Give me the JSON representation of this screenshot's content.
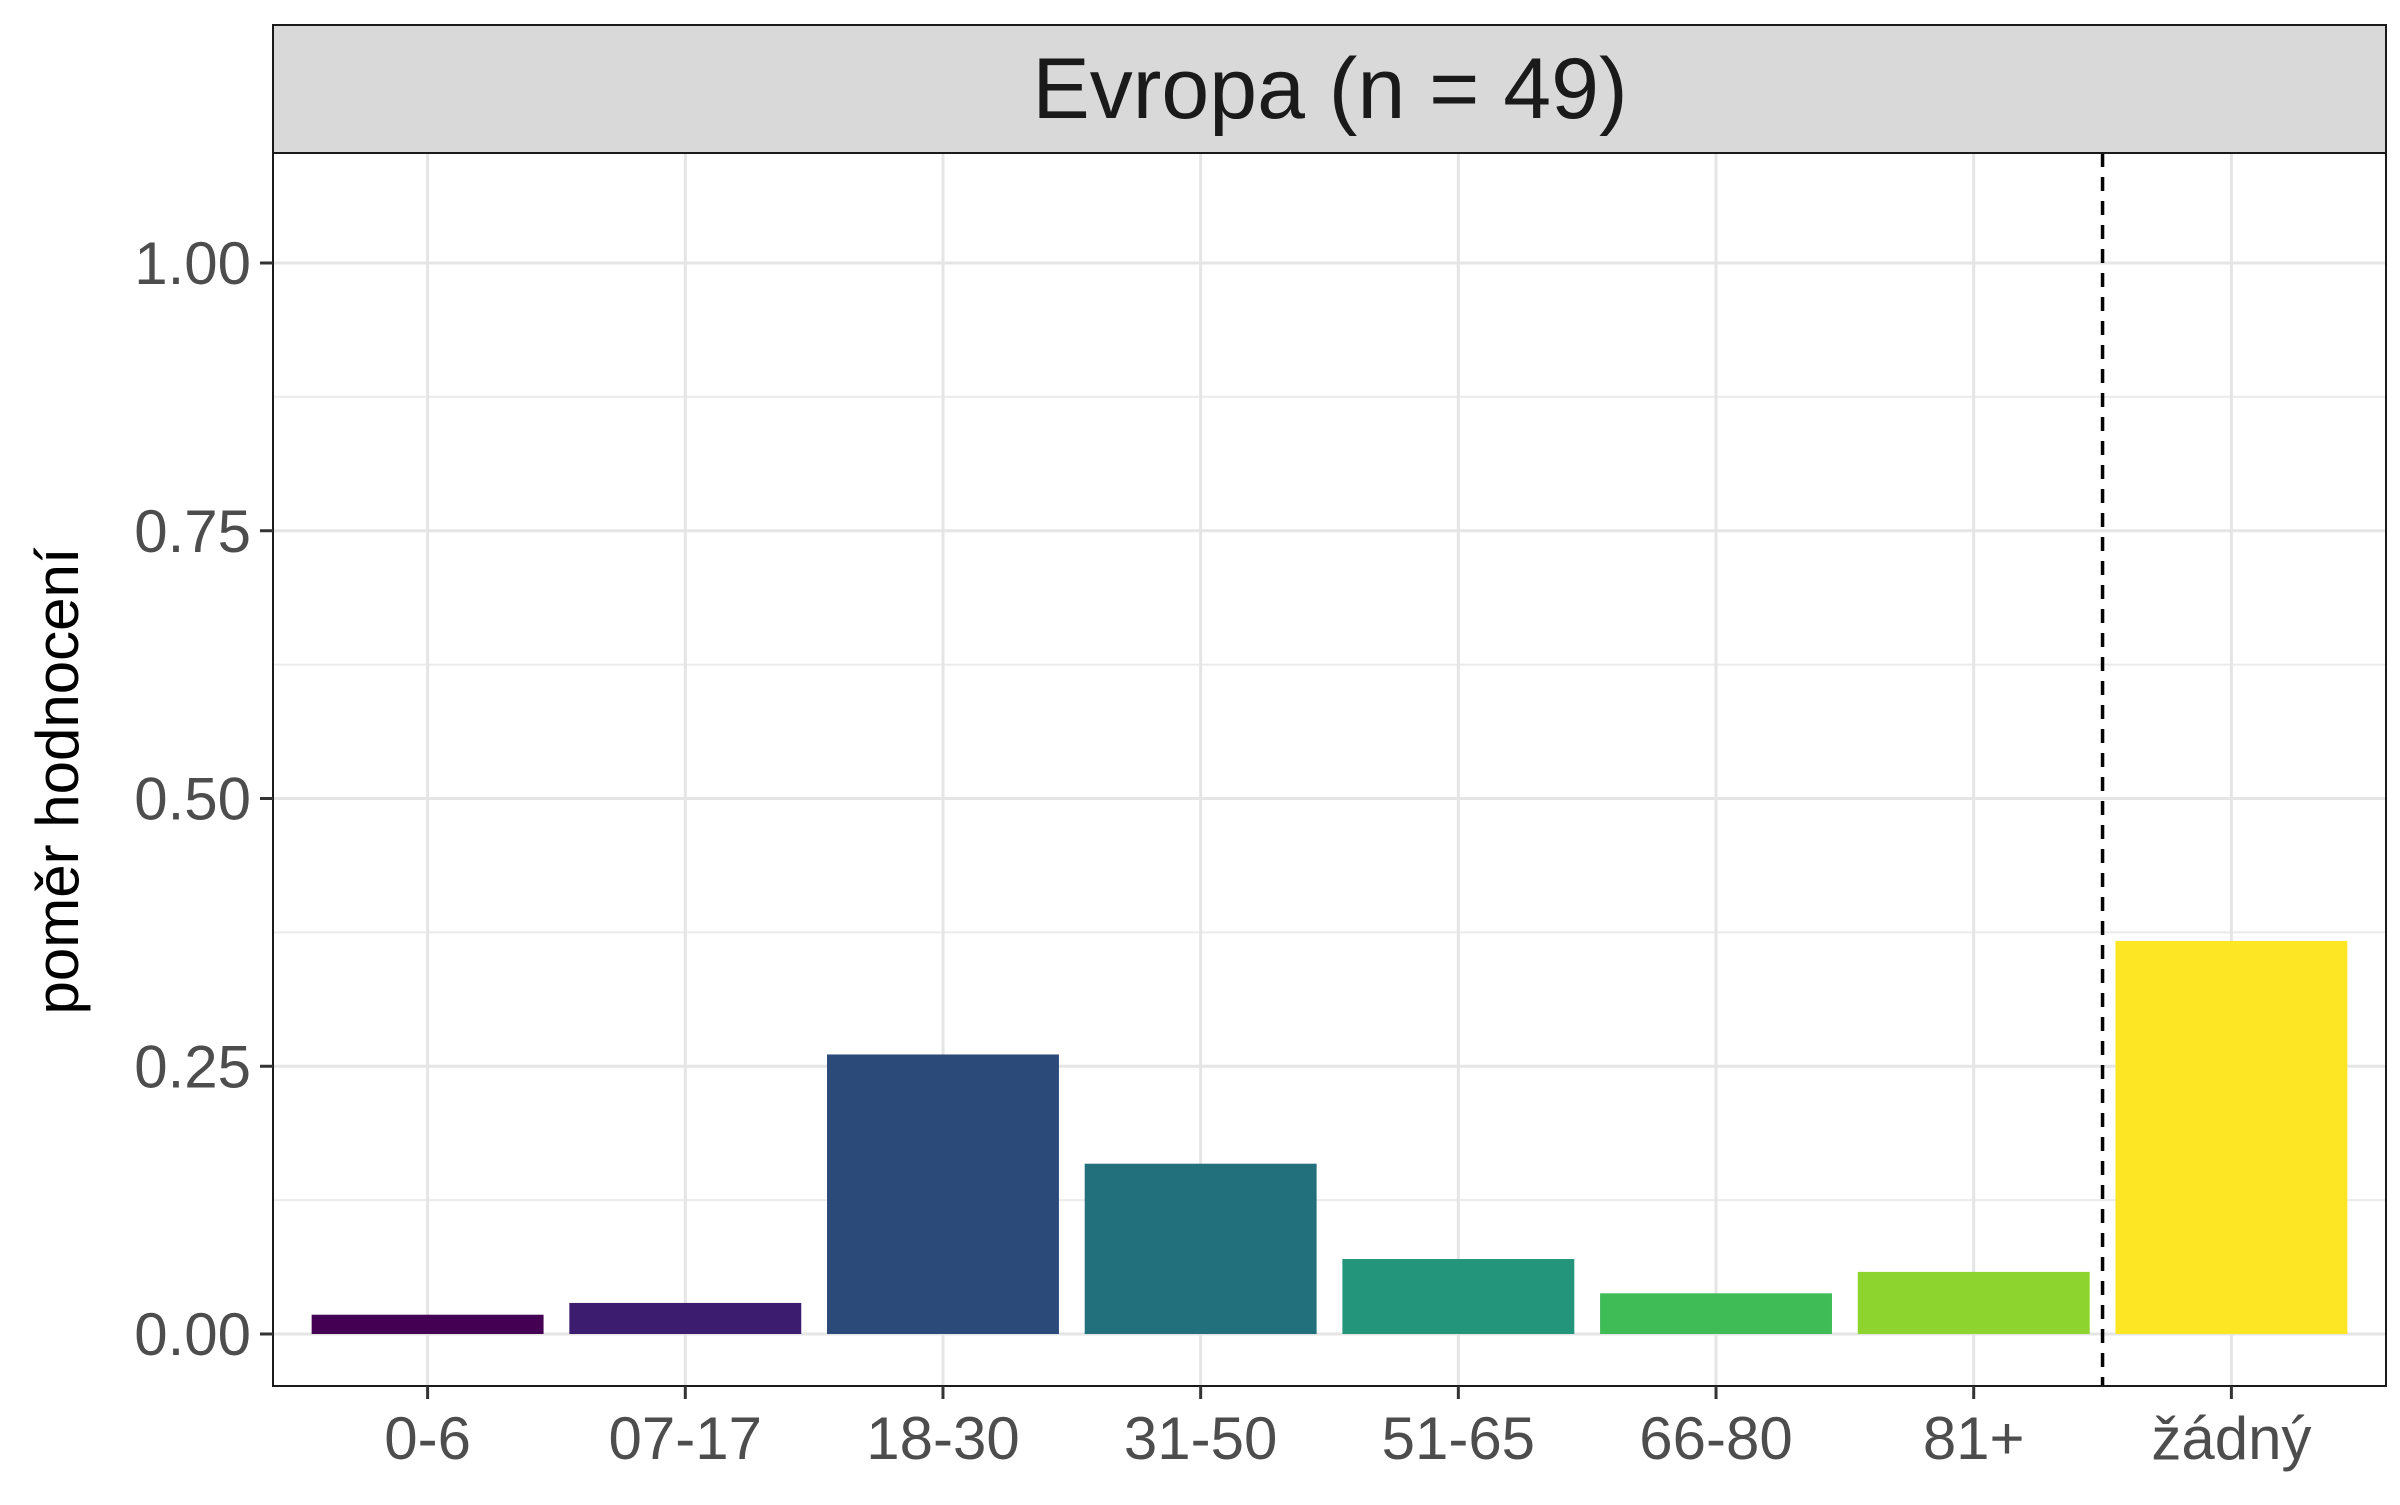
{
  "chart_data": {
    "type": "bar",
    "title": "Evropa (n = 49)",
    "xlabel": "",
    "ylabel": "poměr hodnocení",
    "ylim": [
      -0.05,
      1.1
    ],
    "yticks": [
      "0.00",
      "0.25",
      "0.50",
      "0.75",
      "1.00"
    ],
    "ytick_values": [
      0,
      0.25,
      0.5,
      0.75,
      1.0
    ],
    "categories": [
      "0-6",
      "07-17",
      "18-30",
      "31-50",
      "51-65",
      "66-80",
      "81+",
      "žádný"
    ],
    "values": [
      0.018,
      0.029,
      0.261,
      0.159,
      0.07,
      0.038,
      0.058,
      0.367
    ],
    "colors": [
      "#440154",
      "#3B1C6E",
      "#2B4A79",
      "#21707C",
      "#22957A",
      "#40BC57",
      "#8DD52E",
      "#FDE725"
    ],
    "reference_line": {
      "style": "dashed",
      "between": [
        "81+",
        "žádný"
      ]
    },
    "grid": true,
    "strip_fill": "#d9d9d9"
  }
}
